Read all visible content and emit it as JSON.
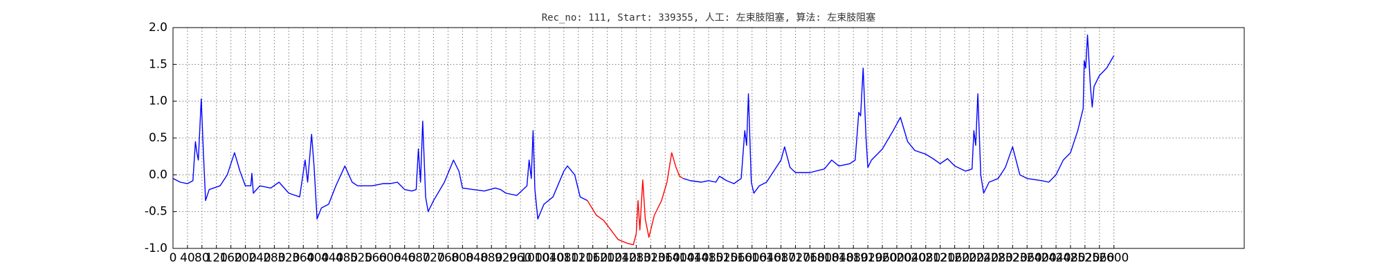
{
  "chart_data": {
    "type": "line",
    "title": "Rec_no: 111, Start: 339355, 人工: 左束肢阻塞, 算法: 左束肢阻塞",
    "x": [
      0,
      20,
      40,
      55,
      62,
      66,
      70,
      78,
      84,
      90,
      100,
      130,
      150,
      170,
      185,
      200,
      215,
      218,
      222,
      240,
      270,
      293,
      320,
      350,
      365,
      372,
      383,
      390,
      398,
      410,
      430,
      450,
      475,
      495,
      510,
      550,
      580,
      600,
      620,
      640,
      660,
      672,
      678,
      684,
      690,
      698,
      705,
      720,
      750,
      775,
      790,
      800,
      830,
      860,
      890,
      905,
      920,
      950,
      978,
      984,
      990,
      995,
      1000,
      1008,
      1025,
      1050,
      1080,
      1090,
      1110,
      1125,
      1145,
      1170,
      1190,
      1210,
      1230,
      1255,
      1272,
      1280,
      1285,
      1290,
      1298,
      1305,
      1315,
      1330,
      1350,
      1365,
      1378,
      1390,
      1400,
      1410,
      1430,
      1460,
      1480,
      1500,
      1510,
      1530,
      1550,
      1570,
      1580,
      1585,
      1590,
      1598,
      1605,
      1620,
      1640,
      1660,
      1680,
      1690,
      1705,
      1720,
      1760,
      1800,
      1820,
      1840,
      1870,
      1885,
      1895,
      1900,
      1907,
      1915,
      1920,
      1930,
      1960,
      1990,
      2010,
      2030,
      2050,
      2080,
      2100,
      2120,
      2140,
      2160,
      2190,
      2208,
      2213,
      2218,
      2224,
      2232,
      2240,
      2255,
      2280,
      2300,
      2320,
      2340,
      2360,
      2400,
      2420,
      2440,
      2460,
      2480,
      2500,
      2515,
      2518,
      2522,
      2527,
      2535,
      2540,
      2545,
      2560,
      2580,
      2600
    ],
    "series": [
      {
        "color": "#0000ff",
        "values": [
          -0.05,
          -0.1,
          -0.12,
          -0.08,
          0.45,
          0.3,
          0.2,
          1.03,
          0.3,
          -0.35,
          -0.2,
          -0.15,
          0,
          0.3,
          0.05,
          -0.15,
          -0.15,
          0.02,
          -0.25,
          -0.15,
          -0.18,
          -0.1,
          -0.25,
          -0.3,
          0.2,
          -0.1,
          0.55,
          0.1,
          -0.6,
          -0.45,
          -0.4,
          -0.15,
          0.12,
          -0.1,
          -0.15,
          -0.15,
          -0.12,
          -0.12,
          -0.1,
          -0.2,
          -0.22,
          -0.2,
          0.35,
          -0.1,
          0.73,
          -0.3,
          -0.5,
          -0.35,
          -0.1,
          0.2,
          0.05,
          -0.18,
          -0.2,
          -0.22,
          -0.18,
          -0.2,
          -0.25,
          -0.28,
          -0.15,
          0.2,
          -0.05,
          0.6,
          -0.2,
          -0.6,
          -0.4,
          -0.3,
          0.05,
          0.12,
          0,
          -0.3,
          -0.35,
          null,
          null,
          null,
          null,
          null,
          null,
          null,
          null,
          null,
          null,
          null,
          null,
          null,
          null,
          null,
          null,
          null,
          null,
          -0.05,
          -0.08,
          -0.1,
          -0.08,
          -0.1,
          -0.02,
          -0.08,
          -0.12,
          -0.05,
          0.6,
          0.4,
          1.1,
          -0.1,
          -0.25,
          -0.15,
          -0.1,
          0.05,
          0.2,
          0.38,
          0.1,
          0.03,
          0.03,
          0.08,
          0.2,
          0.12,
          0.15,
          0.2,
          0.85,
          0.8,
          1.45,
          0.5,
          0.1,
          0.2,
          0.35,
          0.6,
          0.78,
          0.45,
          0.33,
          0.28,
          0.22,
          0.15,
          0.22,
          0.12,
          0.05,
          0.08,
          0.6,
          0.4,
          1.1,
          0,
          -0.25,
          -0.1,
          -0.05,
          0.1,
          0.38,
          0,
          -0.05,
          -0.08,
          -0.1,
          0,
          0.2,
          0.3,
          0.6,
          0.9,
          1.55,
          1.45,
          1.9,
          1.2,
          0.92,
          1.2,
          1.35,
          1.45,
          1.62
        ]
      },
      {
        "color": "#ff0000",
        "values": [
          null,
          null,
          null,
          null,
          null,
          null,
          null,
          null,
          null,
          null,
          null,
          null,
          null,
          null,
          null,
          null,
          null,
          null,
          null,
          null,
          null,
          null,
          null,
          null,
          null,
          null,
          null,
          null,
          null,
          null,
          null,
          null,
          null,
          null,
          null,
          null,
          null,
          null,
          null,
          null,
          null,
          null,
          null,
          null,
          null,
          null,
          null,
          null,
          null,
          null,
          null,
          null,
          null,
          null,
          null,
          null,
          null,
          null,
          null,
          null,
          null,
          null,
          null,
          null,
          null,
          null,
          null,
          null,
          null,
          null,
          -0.35,
          -0.55,
          -0.62,
          -0.75,
          -0.88,
          -0.93,
          -0.95,
          -0.8,
          -0.35,
          -0.75,
          -0.07,
          -0.6,
          -0.85,
          -0.55,
          -0.35,
          -0.1,
          0.3,
          0.1,
          -0.02,
          -0.05,
          null,
          null,
          null,
          null,
          null,
          null,
          null,
          null,
          null,
          null,
          null,
          null,
          null,
          null,
          null,
          null,
          null,
          null,
          null,
          null,
          null,
          null,
          null,
          null,
          null,
          null,
          null,
          null,
          null,
          null,
          null,
          null,
          null,
          null,
          null,
          null,
          null,
          null,
          null,
          null,
          null,
          null,
          null,
          null,
          null,
          null,
          null,
          null,
          null,
          null,
          null,
          null,
          null,
          null,
          null,
          null,
          null,
          null,
          null,
          null,
          null,
          null,
          null,
          null,
          null,
          null,
          null,
          null,
          null,
          null,
          null
        ]
      }
    ],
    "xlim": [
      0,
      2960
    ],
    "xticks": [
      0,
      40,
      80,
      120,
      160,
      200,
      240,
      280,
      320,
      360,
      400,
      440,
      480,
      520,
      560,
      600,
      640,
      680,
      720,
      760,
      800,
      840,
      880,
      920,
      960,
      1000,
      1040,
      1080,
      1120,
      1160,
      1200,
      1240,
      1280,
      1320,
      1360,
      1400,
      1440,
      1480,
      1520,
      1560,
      1600,
      1640,
      1680,
      1720,
      1760,
      1800,
      1840,
      1880,
      1920,
      1960,
      2000,
      2040,
      2080,
      2120,
      2160,
      2200,
      2240,
      2280,
      2320,
      2360,
      2400,
      2440,
      2480,
      2520,
      2560,
      2600
    ],
    "ylim": [
      -1,
      2
    ],
    "yticks": [
      {
        "value": -1,
        "label": "-1.0"
      },
      -0.5,
      {
        "value": 0,
        "label": "0.0"
      },
      0.5,
      {
        "value": 1,
        "label": "1.0"
      },
      1.5,
      {
        "value": 2,
        "label": "2.0"
      }
    ],
    "grid": true
  }
}
